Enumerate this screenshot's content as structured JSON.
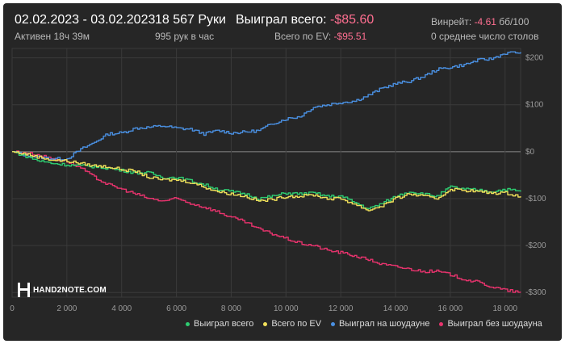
{
  "header": {
    "date_range": "02.02.2023 - 03.02.2023",
    "active_time": "Активен 18ч 39м",
    "hands": "18 567 Руки",
    "hands_per_hour": "995 рук в час",
    "won_total_label": "Выиграл всего:",
    "won_total_value": "-$85.60",
    "ev_total_label": "Всего по EV:",
    "ev_total_value": "-$95.51",
    "winrate_label": "Винрейт:",
    "winrate_value": "-4.61",
    "winrate_unit": "бб/100",
    "avg_tables": "0 среднее число столов"
  },
  "logo": {
    "text": "HAND2NOTE.COM"
  },
  "chart_data": {
    "type": "line",
    "xlim": [
      0,
      18567
    ],
    "ylim": [
      -310,
      220
    ],
    "x_ticks": [
      0,
      2000,
      4000,
      6000,
      8000,
      10000,
      12000,
      14000,
      16000,
      18000
    ],
    "x_tick_labels": [
      "0",
      "2 000",
      "4 000",
      "6 000",
      "8 000",
      "10 000",
      "12 000",
      "14 000",
      "16 000",
      "18 000"
    ],
    "y_ticks": [
      200,
      100,
      0,
      -100,
      -200,
      -300
    ],
    "y_tick_labels": [
      "$200",
      "$100",
      "$0",
      "-$100",
      "-$200",
      "-$300"
    ],
    "grid": true,
    "legend_position": "bottom-right",
    "series": [
      {
        "name": "Выиграл на шоудауне",
        "color": "#4a90e2",
        "x": [
          0,
          500,
          1000,
          1500,
          2000,
          2500,
          3000,
          3500,
          4000,
          4500,
          5000,
          5500,
          6000,
          6500,
          7000,
          7500,
          8000,
          8500,
          9000,
          9500,
          10000,
          10500,
          11000,
          11500,
          12000,
          12500,
          13000,
          13500,
          14000,
          14500,
          15000,
          15500,
          16000,
          16500,
          17000,
          17500,
          18000,
          18567
        ],
        "y": [
          0,
          -8,
          -12,
          -15,
          -15,
          5,
          20,
          38,
          40,
          50,
          52,
          55,
          50,
          48,
          38,
          45,
          40,
          42,
          45,
          60,
          70,
          75,
          95,
          100,
          105,
          108,
          120,
          135,
          145,
          150,
          160,
          175,
          180,
          185,
          195,
          198,
          210,
          212
        ]
      },
      {
        "name": "Выиграл всего",
        "color": "#2ecc71",
        "x": [
          0,
          500,
          1000,
          1500,
          2000,
          2500,
          3000,
          3500,
          4000,
          4500,
          5000,
          5500,
          6000,
          6500,
          7000,
          7500,
          8000,
          8500,
          9000,
          9500,
          10000,
          10500,
          11000,
          11500,
          12000,
          12500,
          13000,
          13500,
          14000,
          14500,
          15000,
          15500,
          16000,
          16500,
          17000,
          17500,
          18000,
          18567
        ],
        "y": [
          0,
          -10,
          -20,
          -25,
          -28,
          -30,
          -32,
          -35,
          -40,
          -45,
          -45,
          -55,
          -55,
          -62,
          -70,
          -80,
          -85,
          -90,
          -100,
          -95,
          -88,
          -90,
          -88,
          -95,
          -95,
          -108,
          -122,
          -110,
          -95,
          -85,
          -90,
          -95,
          -75,
          -80,
          -82,
          -85,
          -80,
          -85
        ]
      },
      {
        "name": "Всего по EV",
        "color": "#f1e05a",
        "x": [
          0,
          500,
          1000,
          1500,
          2000,
          2500,
          3000,
          3500,
          4000,
          4500,
          5000,
          5500,
          6000,
          6500,
          7000,
          7500,
          8000,
          8500,
          9000,
          9500,
          10000,
          10500,
          11000,
          11500,
          12000,
          12500,
          13000,
          13500,
          14000,
          14500,
          15000,
          15500,
          16000,
          16500,
          17000,
          17500,
          18000,
          18567
        ],
        "y": [
          0,
          -5,
          -12,
          -18,
          -20,
          -25,
          -30,
          -32,
          -38,
          -42,
          -55,
          -60,
          -60,
          -65,
          -75,
          -85,
          -90,
          -95,
          -105,
          -102,
          -95,
          -95,
          -92,
          -100,
          -100,
          -112,
          -125,
          -115,
          -100,
          -90,
          -95,
          -100,
          -80,
          -82,
          -85,
          -88,
          -88,
          -95
        ]
      },
      {
        "name": "Выиграл без шоудауна",
        "color": "#e8336d",
        "x": [
          0,
          500,
          1000,
          1500,
          2000,
          2500,
          3000,
          3500,
          4000,
          4500,
          5000,
          5500,
          6000,
          6500,
          7000,
          7500,
          8000,
          8500,
          9000,
          9500,
          10000,
          10500,
          11000,
          11500,
          12000,
          12500,
          13000,
          13500,
          14000,
          14500,
          15000,
          15500,
          16000,
          16500,
          17000,
          17500,
          18000,
          18567
        ],
        "y": [
          0,
          -2,
          -8,
          -15,
          -20,
          -35,
          -55,
          -70,
          -80,
          -90,
          -100,
          -105,
          -100,
          -110,
          -118,
          -128,
          -140,
          -150,
          -165,
          -175,
          -185,
          -195,
          -200,
          -210,
          -215,
          -222,
          -230,
          -240,
          -245,
          -250,
          -255,
          -255,
          -262,
          -272,
          -278,
          -288,
          -295,
          -300
        ]
      }
    ]
  }
}
